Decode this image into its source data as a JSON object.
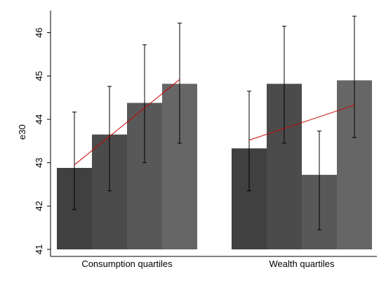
{
  "chart_data": {
    "type": "bar",
    "ylabel": "e30",
    "ylim": [
      41,
      46.6
    ],
    "yticks": [
      41,
      42,
      43,
      44,
      45,
      46
    ],
    "groups": [
      {
        "label": "Consumption quartiles",
        "bars": [
          {
            "value": 42.88,
            "ci": [
              41.92,
              44.17
            ]
          },
          {
            "value": 43.65,
            "ci": [
              42.35,
              44.76
            ]
          },
          {
            "value": 44.38,
            "ci": [
              43.0,
              45.72
            ]
          },
          {
            "value": 44.82,
            "ci": [
              43.45,
              46.22
            ]
          }
        ],
        "trend": {
          "start": 42.95,
          "end": 44.92
        }
      },
      {
        "label": "Wealth quartiles",
        "bars": [
          {
            "value": 43.33,
            "ci": [
              42.35,
              44.65
            ]
          },
          {
            "value": 44.82,
            "ci": [
              43.45,
              46.15
            ]
          },
          {
            "value": 42.72,
            "ci": [
              41.45,
              43.73
            ]
          },
          {
            "value": 44.9,
            "ci": [
              43.58,
              46.38
            ]
          }
        ],
        "trend": {
          "start": 43.52,
          "end": 44.33
        }
      }
    ],
    "bar_colors": [
      "#404040",
      "#4b4b4b",
      "#585858",
      "#666666"
    ],
    "trend_color": "#cc0000"
  }
}
